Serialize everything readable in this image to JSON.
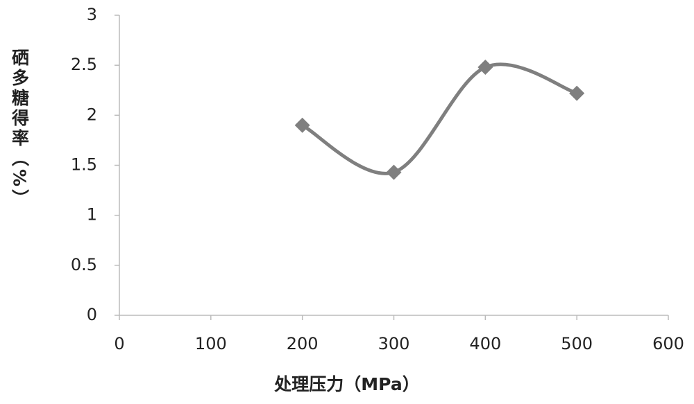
{
  "chart_data": {
    "type": "scatter",
    "smooth": true,
    "x_label": "处理压力（MPa）",
    "y_label": "硒多糖得率（%）",
    "series": [
      {
        "name": "硒多糖得率",
        "color": "#7f7f7f",
        "x": [
          200,
          300,
          400,
          500
        ],
        "values": [
          1.9,
          1.43,
          2.48,
          2.22
        ]
      }
    ],
    "xlim": [
      0,
      600
    ],
    "xticks": [
      0,
      100,
      200,
      300,
      400,
      500,
      600
    ],
    "ylim": [
      0,
      3
    ],
    "yticks": [
      0,
      0.5,
      1,
      1.5,
      2,
      2.5,
      3
    ],
    "grid": false
  }
}
